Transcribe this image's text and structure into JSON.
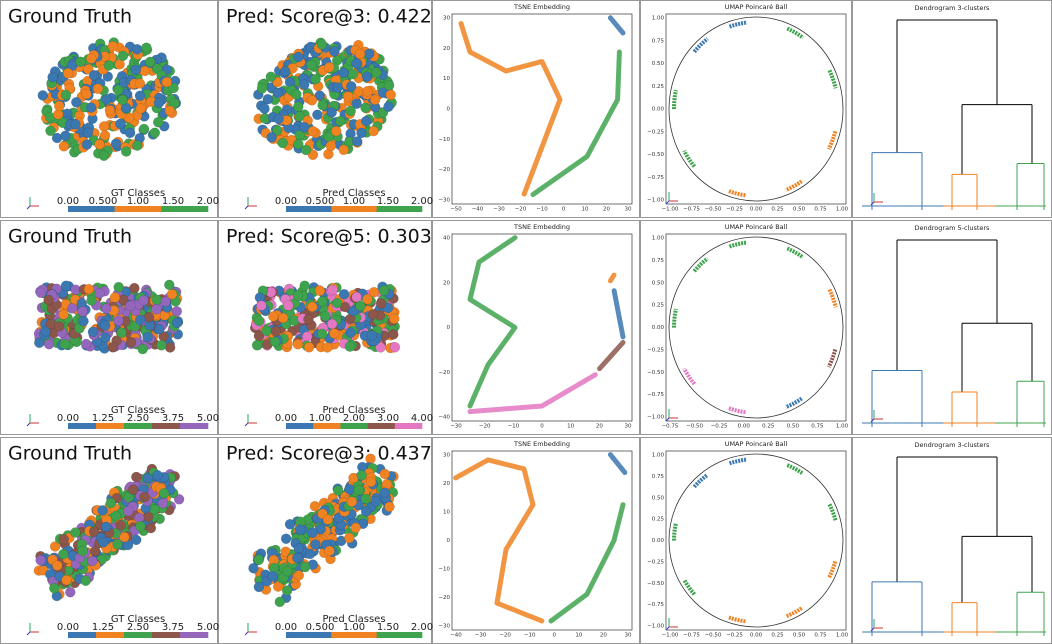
{
  "rows": [
    {
      "gt_title": "Ground Truth",
      "pred_title": "Pred: Score@3: 0.422",
      "gt_bar": {
        "label": "GT Classes",
        "ticks": [
          "0.00",
          "0.500",
          "1.00",
          "1.50",
          "2.00"
        ],
        "colors": [
          "#3b77b0",
          "#f08222",
          "#3fa34d"
        ]
      },
      "pred_bar": {
        "label": "Pred Classes",
        "ticks": [
          "0.00",
          "0.500",
          "1.00",
          "1.50",
          "2.00"
        ],
        "colors": [
          "#3b77b0",
          "#f08222",
          "#3fa34d"
        ]
      },
      "tsne": {
        "title": "TSNE Embedding",
        "xticks": [
          "−50",
          "−40",
          "−30",
          "−20",
          "−10",
          "0",
          "10",
          "20",
          "30"
        ],
        "yticks": [
          "30",
          "20",
          "10",
          "0",
          "−10",
          "−20",
          "−30"
        ]
      },
      "umap": {
        "title": "UMAP Poincaré Ball",
        "xticks": [
          "−1.00",
          "−0.75",
          "−0.50",
          "−0.25",
          "0.00",
          "0.25",
          "0.50",
          "0.75",
          "1.00"
        ],
        "yticks": [
          "1.00",
          "0.75",
          "0.50",
          "0.25",
          "0.00",
          "−0.25",
          "−0.50",
          "−0.75",
          "−1.00"
        ]
      },
      "dendro_title": "Dendrogram 3-clusters"
    },
    {
      "gt_title": "Ground Truth",
      "pred_title": "Pred: Score@5: 0.303",
      "gt_bar": {
        "label": "GT Classes",
        "ticks": [
          "0.00",
          "1.25",
          "2.50",
          "3.75",
          "5.00"
        ],
        "colors": [
          "#3b77b0",
          "#f08222",
          "#3fa34d",
          "#8c564b",
          "#9467bd"
        ]
      },
      "pred_bar": {
        "label": "Pred Classes",
        "ticks": [
          "0.00",
          "1.00",
          "2.00",
          "3.00",
          "4.00"
        ],
        "colors": [
          "#3b77b0",
          "#f08222",
          "#3fa34d",
          "#8c564b",
          "#e377c2"
        ]
      },
      "tsne": {
        "title": "TSNE Embedding",
        "xticks": [
          "−30",
          "−20",
          "−10",
          "0",
          "10",
          "20",
          "30"
        ],
        "yticks": [
          "40",
          "20",
          "0",
          "−20",
          "−40"
        ]
      },
      "umap": {
        "title": "UMAP Poincaré Ball",
        "xticks": [
          "−0.75",
          "−0.50",
          "−0.25",
          "0.00",
          "0.25",
          "0.50",
          "0.75",
          "1.00"
        ],
        "yticks": [
          "1.00",
          "0.75",
          "0.50",
          "0.25",
          "0.00",
          "−0.25",
          "−0.50",
          "−0.75",
          "−1.00"
        ]
      },
      "dendro_title": "Dendrogram 5-clusters"
    },
    {
      "gt_title": "Ground Truth",
      "pred_title": "Pred: Score@3: 0.437",
      "gt_bar": {
        "label": "GT Classes",
        "ticks": [
          "0.00",
          "1.25",
          "2.50",
          "3.75",
          "5.00"
        ],
        "colors": [
          "#3b77b0",
          "#f08222",
          "#3fa34d",
          "#8c564b",
          "#9467bd"
        ]
      },
      "pred_bar": {
        "label": "Pred Classes",
        "ticks": [
          "0.00",
          "0.500",
          "1.00",
          "1.50",
          "2.00"
        ],
        "colors": [
          "#3b77b0",
          "#f08222",
          "#3fa34d"
        ]
      },
      "tsne": {
        "title": "TSNE Embedding",
        "xticks": [
          "−40",
          "−30",
          "−20",
          "−10",
          "0",
          "10",
          "20",
          "30"
        ],
        "yticks": [
          "30",
          "20",
          "10",
          "0",
          "−10",
          "−20",
          "−30"
        ]
      },
      "umap": {
        "title": "UMAP Poincaré Ball",
        "xticks": [
          "−1.00",
          "−0.75",
          "−0.50",
          "−0.25",
          "0.00",
          "0.25",
          "0.50",
          "0.75",
          "1.00"
        ],
        "yticks": [
          "1.00",
          "0.75",
          "0.50",
          "0.25",
          "0.00",
          "−0.25",
          "−0.50",
          "−0.75",
          "−1.00"
        ]
      },
      "dendro_title": "Dendrogram 3-clusters"
    }
  ]
}
